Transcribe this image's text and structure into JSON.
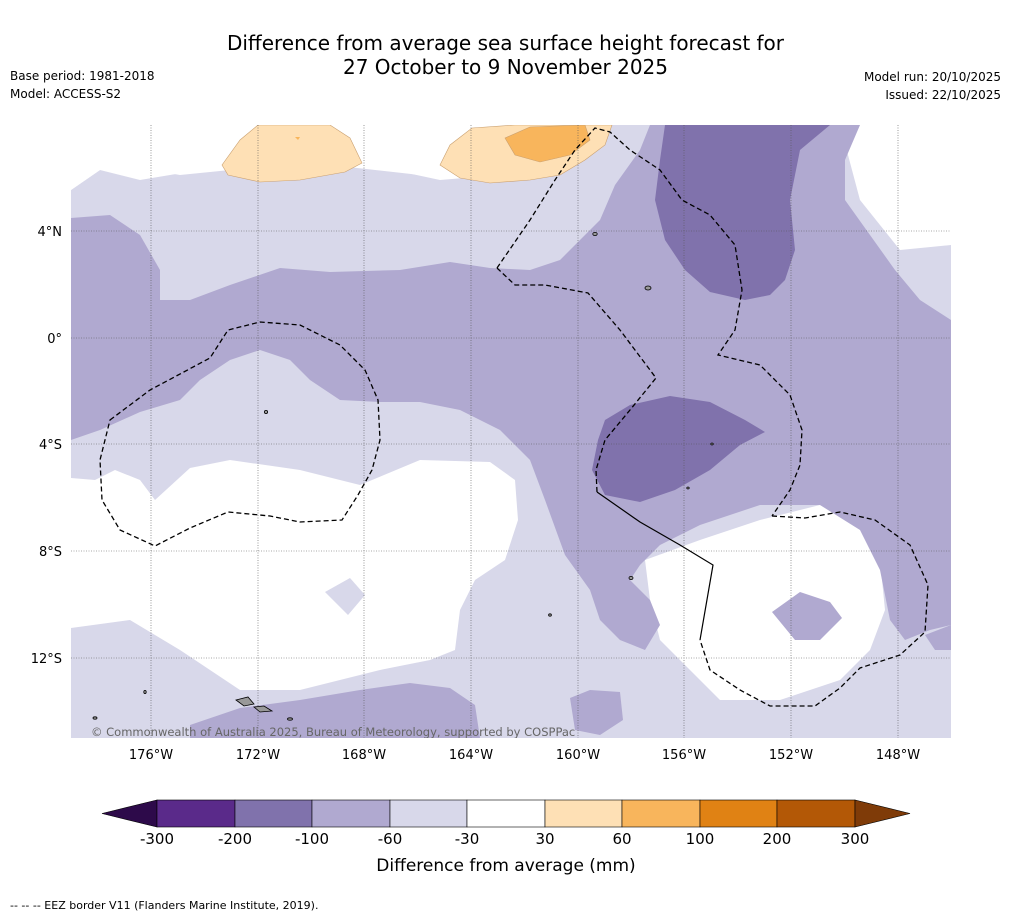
{
  "header": {
    "title_line1": "Difference from average sea surface height forecast for",
    "title_line2": "27 October to 9 November 2025",
    "base_period": "Base period: 1981-2018",
    "model": "Model: ACCESS-S2",
    "model_run": "Model run: 20/10/2025",
    "issued": "Issued: 22/10/2025"
  },
  "map": {
    "lat_labels": [
      "4°N",
      "0°",
      "4°S",
      "8°S",
      "12°S"
    ],
    "lon_labels": [
      "176°W",
      "172°W",
      "168°W",
      "164°W",
      "160°W",
      "156°W",
      "152°W",
      "148°W"
    ],
    "copyright": "© Commonwealth of Australia 2025, Bureau of Meteorology, supported by COSPPac"
  },
  "colorbar": {
    "title": "Difference from average (mm)",
    "ticks": [
      "-300",
      "-200",
      "-100",
      "-60",
      "-30",
      "30",
      "60",
      "100",
      "200",
      "300"
    ],
    "colors": [
      "#2d0a4a",
      "#5a2a8a",
      "#8072ac",
      "#b0a9d0",
      "#d8d8ea",
      "#ffffff",
      "#fee0b5",
      "#f8b55c",
      "#e08214",
      "#b35806",
      "#7f3b08"
    ]
  },
  "footer": {
    "legend": "-- -- -- EEZ border V11 (Flanders Marine Institute, 2019)."
  }
}
